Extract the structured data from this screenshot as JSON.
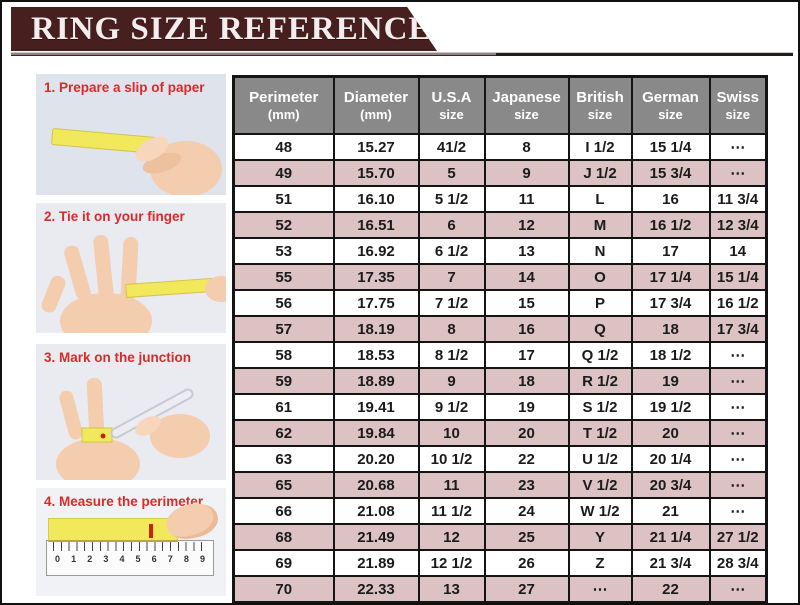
{
  "page": {
    "title": "RING SIZE REFERENCE"
  },
  "colors": {
    "banner_maroon": "#471f1f",
    "header_gray": "#898989",
    "row_pink": "#dcc2c2",
    "step_label_red": "#d92a2a",
    "paper_yellow": "#f2e85c",
    "skin_tone": "#f4ccae"
  },
  "steps": [
    {
      "label": "1. Prepare a slip of paper"
    },
    {
      "label": "2. Tie it on your finger"
    },
    {
      "label": "3. Mark on the junction"
    },
    {
      "label": "4. Measure the perimeter",
      "ruler_numbers": [
        "0",
        "1",
        "2",
        "3",
        "4",
        "5",
        "6",
        "7",
        "8",
        "9"
      ]
    }
  ],
  "chart_data": {
    "type": "table",
    "title": "RING SIZE REFERENCE",
    "columns": [
      {
        "label": "Perimeter",
        "sub": "(mm)"
      },
      {
        "label": "Diameter",
        "sub": "(mm)"
      },
      {
        "label": "U.S.A",
        "sub": "size"
      },
      {
        "label": "Japanese",
        "sub": "size"
      },
      {
        "label": "British",
        "sub": "size"
      },
      {
        "label": "German",
        "sub": "size"
      },
      {
        "label": "Swiss",
        "sub": "size"
      }
    ],
    "rows": [
      [
        "48",
        "15.27",
        "41/2",
        "8",
        "I 1/2",
        "15 1/4",
        "⋯"
      ],
      [
        "49",
        "15.70",
        "5",
        "9",
        "J 1/2",
        "15 3/4",
        "⋯"
      ],
      [
        "51",
        "16.10",
        "5 1/2",
        "11",
        "L",
        "16",
        "11 3/4"
      ],
      [
        "52",
        "16.51",
        "6",
        "12",
        "M",
        "16 1/2",
        "12 3/4"
      ],
      [
        "53",
        "16.92",
        "6 1/2",
        "13",
        "N",
        "17",
        "14"
      ],
      [
        "55",
        "17.35",
        "7",
        "14",
        "O",
        "17 1/4",
        "15 1/4"
      ],
      [
        "56",
        "17.75",
        "7 1/2",
        "15",
        "P",
        "17 3/4",
        "16 1/2"
      ],
      [
        "57",
        "18.19",
        "8",
        "16",
        "Q",
        "18",
        "17 3/4"
      ],
      [
        "58",
        "18.53",
        "8 1/2",
        "17",
        "Q 1/2",
        "18 1/2",
        "⋯"
      ],
      [
        "59",
        "18.89",
        "9",
        "18",
        "R 1/2",
        "19",
        "⋯"
      ],
      [
        "61",
        "19.41",
        "9 1/2",
        "19",
        "S 1/2",
        "19 1/2",
        "⋯"
      ],
      [
        "62",
        "19.84",
        "10",
        "20",
        "T 1/2",
        "20",
        "⋯"
      ],
      [
        "63",
        "20.20",
        "10 1/2",
        "22",
        "U 1/2",
        "20 1/4",
        "⋯"
      ],
      [
        "65",
        "20.68",
        "11",
        "23",
        "V 1/2",
        "20 3/4",
        "⋯"
      ],
      [
        "66",
        "21.08",
        "11 1/2",
        "24",
        "W 1/2",
        "21",
        "⋯"
      ],
      [
        "68",
        "21.49",
        "12",
        "25",
        "Y",
        "21 1/4",
        "27 1/2"
      ],
      [
        "69",
        "21.89",
        "12 1/2",
        "26",
        "Z",
        "21 3/4",
        "28 3/4"
      ],
      [
        "70",
        "22.33",
        "13",
        "27",
        "⋯",
        "22",
        "⋯"
      ]
    ]
  }
}
